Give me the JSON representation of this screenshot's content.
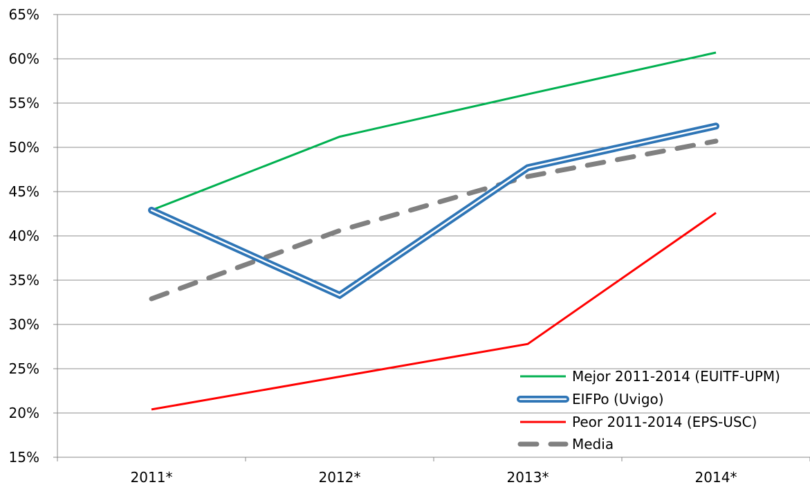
{
  "chart_data": {
    "type": "line",
    "categories": [
      "2011*",
      "2012*",
      "2013*",
      "2014*"
    ],
    "ylim": [
      0.15,
      0.65
    ],
    "yticks": [
      "15%",
      "20%",
      "25%",
      "30%",
      "35%",
      "40%",
      "45%",
      "50%",
      "55%",
      "60%",
      "65%"
    ],
    "grid": true,
    "legend_position": "bottom-right",
    "series": [
      {
        "name": "Mejor 2011-2014 (EUITF-UPM)",
        "values": [
          0.429,
          0.512,
          0.56,
          0.607
        ],
        "color": "#00b050",
        "style": "solid"
      },
      {
        "name": "EIFPo (Uvigo)",
        "values": [
          0.429,
          0.333,
          0.477,
          0.524
        ],
        "color": "#2e75b6",
        "style": "double"
      },
      {
        "name": "Peor 2011-2014 (EPS-USC)",
        "values": [
          0.204,
          0.241,
          0.278,
          0.426
        ],
        "color": "#ff0000",
        "style": "solid"
      },
      {
        "name": "Media",
        "values": [
          0.329,
          0.406,
          0.467,
          0.507
        ],
        "color": "#808080",
        "style": "dashed"
      }
    ]
  }
}
